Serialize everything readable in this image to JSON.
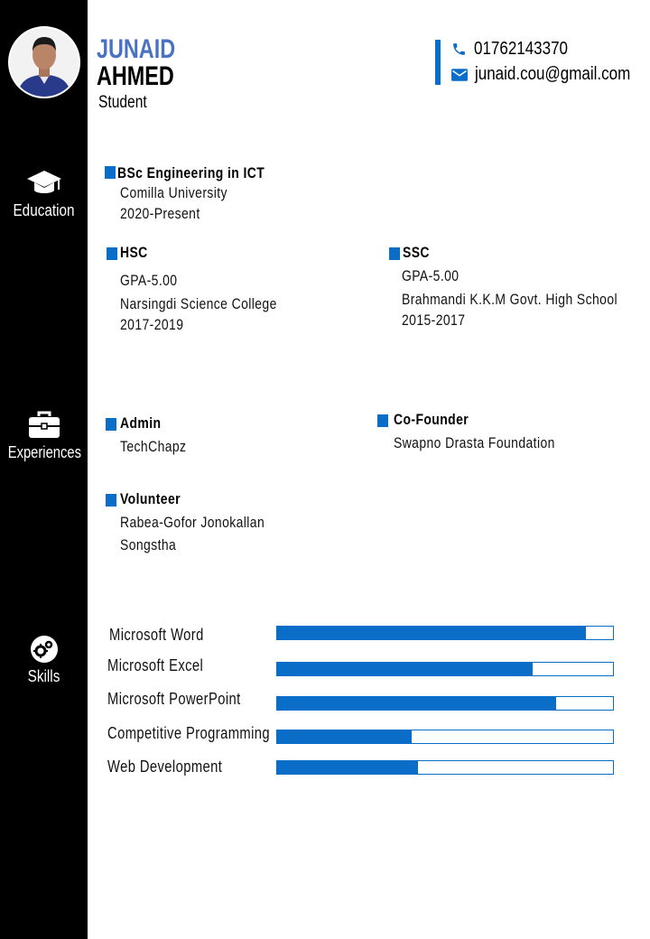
{
  "header": {
    "first_name": "JUNAID",
    "last_name": "AHMED",
    "role": "Student",
    "phone": "01762143370",
    "email": "junaid.cou@gmail.com"
  },
  "sidebar": {
    "education_label": "Education",
    "experiences_label": "Experiences",
    "skills_label": "Skills"
  },
  "education": {
    "bsc": {
      "title": "BSc Engineering in ICT",
      "institution": "Comilla University",
      "period": "2020-Present"
    },
    "hsc": {
      "title": "HSC",
      "gpa": "GPA-5.00",
      "institution": "Narsingdi Science College",
      "period": "2017-2019"
    },
    "ssc": {
      "title": "SSC",
      "gpa": "GPA-5.00",
      "institution": "Brahmandi K.K.M Govt. High School",
      "period": "2015-2017"
    }
  },
  "experiences": {
    "admin": {
      "title": "Admin",
      "org": "TechChapz"
    },
    "cofounder": {
      "title": "Co-Founder",
      "org": "Swapno Drasta Foundation"
    },
    "volunteer": {
      "title": "Volunteer",
      "org_line1": "Rabea-Gofor Jonokallan",
      "org_line2": "Songstha"
    }
  },
  "skills": [
    {
      "name": "Microsoft Word",
      "level": 0.92
    },
    {
      "name": "Microsoft Excel",
      "level": 0.76
    },
    {
      "name": "Microsoft PowerPoint",
      "level": 0.83
    },
    {
      "name": "Competitive Programming",
      "level": 0.4
    },
    {
      "name": "Web Development",
      "level": 0.42
    }
  ],
  "colors": {
    "accent": "#0a6ec9",
    "name_accent": "#4a72c4",
    "sidebar": "#000000"
  },
  "icons": [
    "graduation-cap-icon",
    "briefcase-icon",
    "gears-icon",
    "phone-icon",
    "envelope-icon"
  ]
}
